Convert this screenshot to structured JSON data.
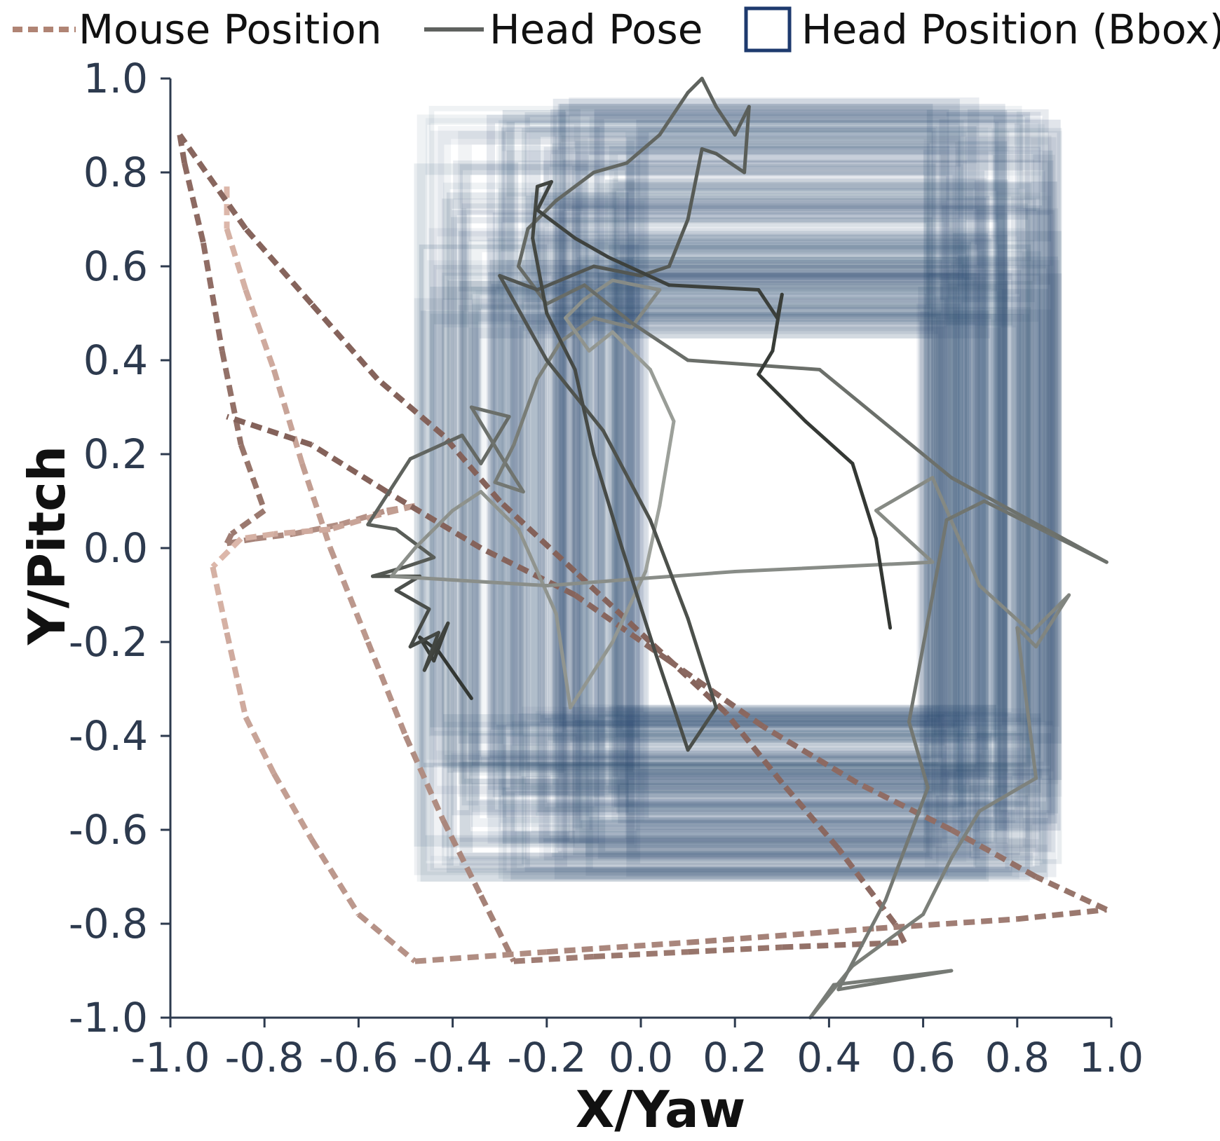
{
  "chart_data": {
    "type": "line",
    "xlabel": "X/Yaw",
    "ylabel": "Y/Pitch",
    "xlim": [
      -1.0,
      1.0
    ],
    "ylim": [
      -1.0,
      1.0
    ],
    "xticks": [
      "-1.0",
      "-0.8",
      "-0.6",
      "-0.4",
      "-0.2",
      "0.0",
      "0.2",
      "0.4",
      "0.6",
      "0.8",
      "1.0"
    ],
    "yticks": [
      "1.0",
      "0.8",
      "0.6",
      "0.4",
      "0.2",
      "0.0",
      "-0.2",
      "-0.4",
      "-0.6",
      "-0.8",
      "-1.0"
    ],
    "grid": false,
    "legend": {
      "placement": "top",
      "entries": [
        {
          "label": "Mouse Position",
          "style": "dashed-line",
          "color": "#b08474"
        },
        {
          "label": "Head Pose",
          "style": "solid-line",
          "color": "#5f625f"
        },
        {
          "label": "Head Position (Bbox)",
          "style": "box",
          "color": "#1e3a6e"
        }
      ]
    },
    "colors": {
      "mouse_dark": "#84625a",
      "mouse_light": "#dcb7aa",
      "head_pose_light": "#9fa39d",
      "head_pose_dark": "#333733",
      "bbox": "#2b4a70"
    },
    "series": [
      {
        "name": "Mouse Position",
        "style": "dashed",
        "points": [
          [
            -0.88,
            0.77
          ],
          [
            -0.88,
            0.68
          ],
          [
            -0.84,
            0.55
          ],
          [
            -0.78,
            0.38
          ],
          [
            -0.72,
            0.18
          ],
          [
            -0.66,
            0.0
          ],
          [
            -0.58,
            -0.2
          ],
          [
            -0.5,
            -0.4
          ],
          [
            -0.42,
            -0.58
          ],
          [
            -0.34,
            -0.74
          ],
          [
            -0.27,
            -0.88
          ],
          [
            -0.1,
            -0.87
          ],
          [
            0.1,
            -0.86
          ],
          [
            0.3,
            -0.85
          ],
          [
            0.56,
            -0.84
          ],
          [
            0.54,
            -0.8
          ],
          [
            0.42,
            -0.64
          ],
          [
            0.3,
            -0.5
          ],
          [
            0.18,
            -0.35
          ],
          [
            0.02,
            -0.2
          ],
          [
            -0.14,
            -0.05
          ],
          [
            -0.3,
            0.1
          ],
          [
            -0.42,
            0.24
          ],
          [
            -0.56,
            0.36
          ],
          [
            -0.7,
            0.52
          ],
          [
            -0.84,
            0.68
          ],
          [
            -0.98,
            0.88
          ],
          [
            -0.97,
            0.82
          ],
          [
            -0.93,
            0.65
          ],
          [
            -0.89,
            0.42
          ],
          [
            -0.85,
            0.22
          ],
          [
            -0.8,
            0.08
          ],
          [
            -0.87,
            0.03
          ],
          [
            -0.88,
            0.01
          ],
          [
            -0.82,
            0.02
          ],
          [
            -0.74,
            0.03
          ],
          [
            -0.64,
            0.05
          ],
          [
            -0.54,
            0.08
          ],
          [
            -0.48,
            0.09
          ],
          [
            -0.56,
            0.07
          ],
          [
            -0.66,
            0.04
          ],
          [
            -0.78,
            0.03
          ],
          [
            -0.85,
            0.02
          ],
          [
            -0.91,
            -0.04
          ],
          [
            -0.88,
            -0.18
          ],
          [
            -0.84,
            -0.36
          ],
          [
            -0.78,
            -0.48
          ],
          [
            -0.7,
            -0.62
          ],
          [
            -0.6,
            -0.78
          ],
          [
            -0.48,
            -0.88
          ],
          [
            -0.2,
            -0.86
          ],
          [
            0.1,
            -0.84
          ],
          [
            0.5,
            -0.81
          ],
          [
            0.8,
            -0.79
          ],
          [
            0.99,
            -0.77
          ],
          [
            0.84,
            -0.7
          ],
          [
            0.66,
            -0.6
          ],
          [
            0.46,
            -0.5
          ],
          [
            0.26,
            -0.38
          ],
          [
            0.06,
            -0.24
          ],
          [
            -0.14,
            -0.1
          ],
          [
            -0.34,
            0.0
          ],
          [
            -0.54,
            0.12
          ],
          [
            -0.7,
            0.22
          ],
          [
            -0.88,
            0.28
          ]
        ]
      },
      {
        "name": "Head Pose",
        "style": "solid",
        "points": [
          [
            -0.36,
            -0.32
          ],
          [
            -0.43,
            -0.22
          ],
          [
            -0.47,
            -0.19
          ],
          [
            -0.44,
            -0.24
          ],
          [
            -0.41,
            -0.16
          ],
          [
            -0.46,
            -0.26
          ],
          [
            -0.43,
            -0.18
          ],
          [
            -0.49,
            -0.21
          ],
          [
            -0.45,
            -0.13
          ],
          [
            -0.52,
            -0.09
          ],
          [
            -0.47,
            -0.06
          ],
          [
            -0.57,
            -0.06
          ],
          [
            -0.5,
            -0.04
          ],
          [
            -0.44,
            -0.02
          ],
          [
            -0.52,
            0.04
          ],
          [
            -0.58,
            0.05
          ],
          [
            -0.49,
            0.19
          ],
          [
            -0.38,
            0.24
          ],
          [
            -0.34,
            0.18
          ],
          [
            -0.28,
            0.28
          ],
          [
            -0.36,
            0.3
          ],
          [
            -0.3,
            0.2
          ],
          [
            -0.25,
            0.12
          ],
          [
            -0.31,
            0.14
          ],
          [
            -0.27,
            0.22
          ],
          [
            -0.22,
            0.36
          ],
          [
            -0.17,
            0.44
          ],
          [
            -0.1,
            0.49
          ],
          [
            -0.02,
            0.47
          ],
          [
            0.04,
            0.55
          ],
          [
            -0.06,
            0.57
          ],
          [
            -0.12,
            0.53
          ],
          [
            -0.16,
            0.49
          ],
          [
            -0.11,
            0.42
          ],
          [
            -0.06,
            0.46
          ],
          [
            0.02,
            0.38
          ],
          [
            0.07,
            0.27
          ],
          [
            0.04,
            0.09
          ],
          [
            0.01,
            -0.05
          ],
          [
            -0.06,
            -0.2
          ],
          [
            -0.15,
            -0.34
          ],
          [
            -0.18,
            -0.14
          ],
          [
            -0.26,
            0.04
          ],
          [
            -0.34,
            0.12
          ],
          [
            -0.4,
            0.08
          ],
          [
            -0.48,
            0.0
          ],
          [
            -0.53,
            -0.06
          ],
          [
            -0.2,
            -0.08
          ],
          [
            0.2,
            -0.05
          ],
          [
            0.62,
            -0.03
          ],
          [
            0.5,
            0.08
          ],
          [
            0.62,
            0.15
          ],
          [
            0.72,
            -0.08
          ],
          [
            0.83,
            -0.18
          ],
          [
            0.91,
            -0.1
          ],
          [
            0.84,
            -0.21
          ],
          [
            0.8,
            -0.17
          ],
          [
            0.84,
            -0.49
          ],
          [
            0.72,
            -0.56
          ],
          [
            0.66,
            -0.66
          ],
          [
            0.6,
            -0.78
          ],
          [
            0.45,
            -0.89
          ],
          [
            0.36,
            -1.0
          ],
          [
            0.41,
            -0.93
          ],
          [
            0.66,
            -0.9
          ],
          [
            0.42,
            -0.94
          ],
          [
            0.52,
            -0.75
          ],
          [
            0.61,
            -0.51
          ],
          [
            0.57,
            -0.37
          ],
          [
            0.65,
            0.06
          ],
          [
            0.73,
            0.1
          ],
          [
            0.89,
            0.02
          ],
          [
            0.99,
            -0.03
          ],
          [
            0.66,
            0.15
          ],
          [
            0.38,
            0.38
          ],
          [
            0.1,
            0.4
          ],
          [
            -0.02,
            0.48
          ],
          [
            -0.12,
            0.56
          ],
          [
            -0.2,
            0.52
          ],
          [
            -0.26,
            0.6
          ],
          [
            -0.24,
            0.68
          ],
          [
            -0.18,
            0.74
          ],
          [
            -0.1,
            0.8
          ],
          [
            -0.03,
            0.82
          ],
          [
            0.04,
            0.88
          ],
          [
            0.1,
            0.97
          ],
          [
            0.13,
            1.0
          ],
          [
            0.16,
            0.94
          ],
          [
            0.2,
            0.88
          ],
          [
            0.23,
            0.94
          ],
          [
            0.22,
            0.8
          ],
          [
            0.16,
            0.84
          ],
          [
            0.13,
            0.85
          ],
          [
            0.1,
            0.7
          ],
          [
            0.06,
            0.6
          ],
          [
            0.0,
            0.58
          ],
          [
            -0.1,
            0.6
          ],
          [
            -0.22,
            0.55
          ],
          [
            -0.3,
            0.58
          ],
          [
            -0.2,
            0.4
          ],
          [
            -0.08,
            0.25
          ],
          [
            0.02,
            0.06
          ],
          [
            0.1,
            -0.15
          ],
          [
            0.16,
            -0.34
          ],
          [
            0.1,
            -0.43
          ],
          [
            0.03,
            -0.22
          ],
          [
            -0.04,
            0.0
          ],
          [
            -0.1,
            0.2
          ],
          [
            -0.14,
            0.38
          ],
          [
            -0.2,
            0.5
          ],
          [
            -0.23,
            0.66
          ],
          [
            -0.22,
            0.77
          ],
          [
            -0.19,
            0.78
          ],
          [
            -0.22,
            0.72
          ],
          [
            -0.14,
            0.66
          ],
          [
            -0.07,
            0.62
          ],
          [
            0.06,
            0.56
          ],
          [
            0.25,
            0.55
          ],
          [
            0.29,
            0.49
          ],
          [
            0.3,
            0.54
          ],
          [
            0.28,
            0.42
          ],
          [
            0.25,
            0.37
          ],
          [
            0.35,
            0.27
          ],
          [
            0.45,
            0.18
          ],
          [
            0.5,
            0.02
          ],
          [
            0.53,
            -0.17
          ]
        ]
      }
    ],
    "bbox_region": {
      "x_range": [
        -0.47,
        0.89
      ],
      "y_range": [
        -0.7,
        0.95
      ]
    }
  }
}
